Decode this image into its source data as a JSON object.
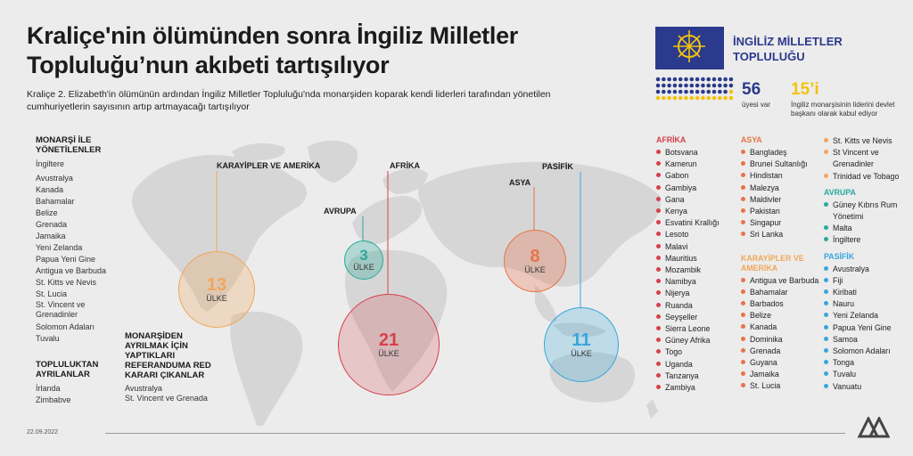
{
  "title": "Kraliçe'nin ölümünden sonra İngiliz Milletler Topluluğu’nun akıbeti tartışılıyor",
  "subtitle": "Kraliçe 2. Elizabeth'in ölümünün ardından İngiliz Milletler Topluluğu'nda monarşiden koparak kendi liderleri tarafından yönetilen cumhuriyetlerin sayısının artıp artmayacağı tartışılıyor",
  "monarchy": {
    "heading": "MONARŞİ İLE YÖNETİLENLER",
    "items": [
      "İngiltere",
      "Avustralya",
      "Kanada",
      "Bahamalar",
      "Belize",
      "Grenada",
      "Jamaika",
      "Yeni Zelanda",
      "Papua Yeni Gine",
      "Antigua ve Barbuda",
      "St. Kitts ve Nevis",
      "St. Lucia",
      "St. Vincent ve Grenadinler",
      "Solomon Adaları",
      "Tuvalu"
    ]
  },
  "left_union": {
    "heading": "TOPLULUKTAN AYRILANLAR",
    "items": [
      "İrlanda",
      "Zimbabve"
    ]
  },
  "referendum": {
    "heading": "MONARŞİDEN AYRILMAK İÇİN YAPTIKLARI REFERANDUMA RED KARARI ÇIKANLAR",
    "items": [
      "Avustralya",
      "St. Vincent ve Grenada"
    ]
  },
  "regions": [
    {
      "label": "KARAYİPLER VE AMERİKA",
      "count": "13",
      "unit": "ÜLKE",
      "color": "#f2a65a"
    },
    {
      "label": "AVRUPA",
      "count": "3",
      "unit": "ÜLKE",
      "color": "#2aa99a"
    },
    {
      "label": "AFRİKA",
      "count": "21",
      "unit": "ÜLKE",
      "color": "#d6404a"
    },
    {
      "label": "ASYA",
      "count": "8",
      "unit": "ÜLKE",
      "color": "#e8734a"
    },
    {
      "label": "PASİFİK",
      "count": "11",
      "unit": "ÜLKE",
      "color": "#37a6dc"
    }
  ],
  "panel": {
    "title": "İNGİLİZ MİLLETLER TOPLULUĞU",
    "members_count": "56",
    "members_label": "üyesi var",
    "monarch_count": "15’i",
    "monarch_label": "İngiliz monarşisinin liderini devlet başkanı olarak kabul ediyor",
    "flag_color": "#2b3a8c",
    "accent": "#f2c20f"
  },
  "country_lists": {
    "afrika": {
      "heading": "AFRİKA",
      "color": "#d6404a",
      "items": [
        "Botsvana",
        "Kamerun",
        "Gabon",
        "Gambiya",
        "Gana",
        "Kenya",
        "Esvatini Krallığı",
        "Lesoto",
        "Malavi",
        "Mauritius",
        "Mozambik",
        "Namibya",
        "Nijerya",
        "Ruanda",
        "Seyşeller",
        "Sierra Leone",
        "Güney Afrika",
        "Togo",
        "Uganda",
        "Tanzanya",
        "Zambiya"
      ]
    },
    "asya": {
      "heading": "ASYA",
      "color": "#e8734a",
      "items": [
        "Bangladeş",
        "Brunei Sultanlığı",
        "Hindistan",
        "Malezya",
        "Maldivler",
        "Pakistan",
        "Singapur",
        "Sri Lanka"
      ]
    },
    "karayipler": {
      "heading": "KARAYİPLER VE AMERİKA",
      "color": "#f2a65a",
      "items": [
        "Antigua ve Barbuda",
        "Bahamalar",
        "Barbados",
        "Belize",
        "Kanada",
        "Dominika",
        "Grenada",
        "Guyana",
        "Jamaika",
        "St. Lucia",
        "St. Kitts ve Nevis",
        "St Vincent ve Grenadinler",
        "Trinidad ve Tobago"
      ]
    },
    "avrupa": {
      "heading": "AVRUPA",
      "color": "#2aa99a",
      "items": [
        "Güney Kıbrıs Rum Yönetimi",
        "Malta",
        "İngiltere"
      ]
    },
    "pasifik": {
      "heading": "PASİFİK",
      "color": "#37a6dc",
      "items": [
        "Avustralya",
        "Fiji",
        "Kiribati",
        "Nauru",
        "Yeni Zelanda",
        "Papua Yeni Gine",
        "Samoa",
        "Solomon Adaları",
        "Tonga",
        "Tuvalu",
        "Vanuatu"
      ]
    }
  },
  "date": "22.09.2022"
}
